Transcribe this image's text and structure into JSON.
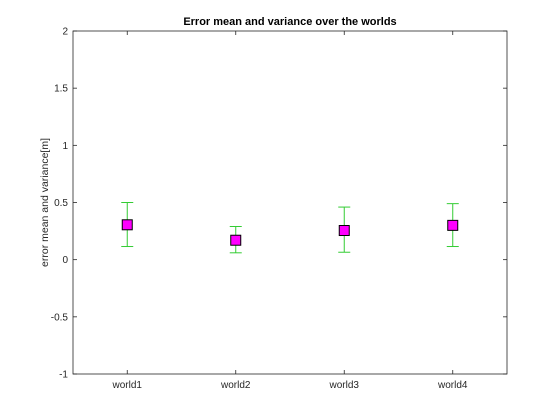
{
  "chart_data": {
    "type": "scatter",
    "title": "Error mean and variance over the worlds",
    "xlabel": "",
    "ylabel": "error mean and variance[m]",
    "categories": [
      "world1",
      "world2",
      "world3",
      "world4"
    ],
    "xlim": [
      0.5,
      4.5
    ],
    "ylim": [
      -1,
      2
    ],
    "yticks": [
      -1,
      -0.5,
      0,
      0.5,
      1,
      1.5,
      2
    ],
    "ytick_labels": [
      "-1",
      "-0.5",
      "0",
      "0.5",
      "1",
      "1.5",
      "2"
    ],
    "grid": false,
    "series": [
      {
        "mean": [
          0.305,
          0.17,
          0.255,
          0.3
        ],
        "lower": [
          0.115,
          0.06,
          0.065,
          0.115
        ],
        "upper": [
          0.5,
          0.29,
          0.46,
          0.49
        ]
      }
    ],
    "colors": {
      "marker_fill": "#ff00ff",
      "marker_edge": "#000000",
      "errorbar": "#33cc33",
      "axes": "#262626"
    }
  }
}
